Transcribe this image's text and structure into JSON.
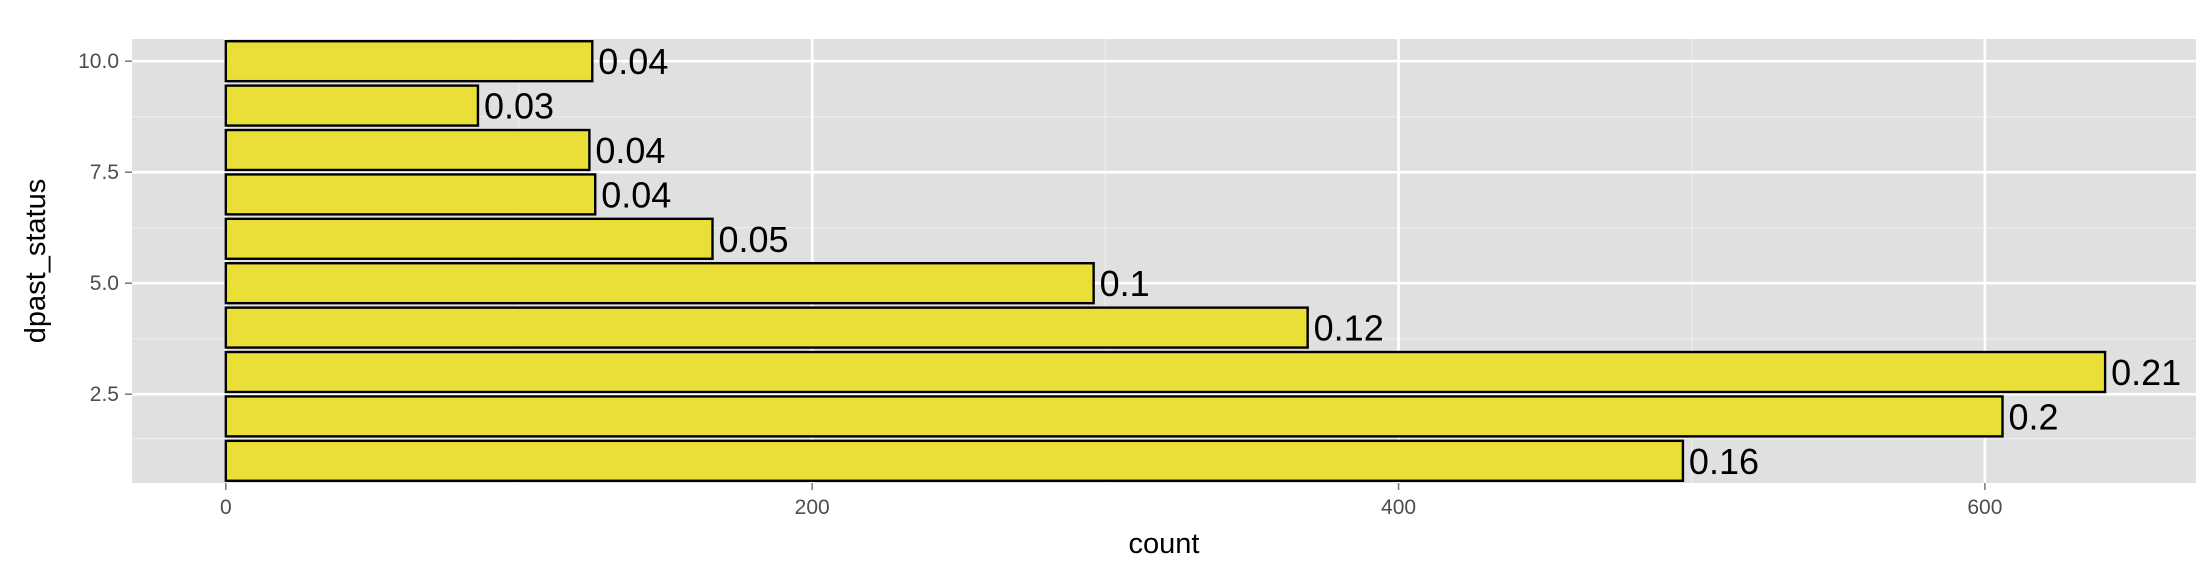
{
  "chart_data": {
    "type": "bar",
    "orientation": "horizontal",
    "xlabel": "count",
    "ylabel": "dpast_status",
    "xlim": [
      -32,
      672
    ],
    "ylim": [
      0.5,
      10.5
    ],
    "x_ticks": [
      0,
      200,
      400,
      600
    ],
    "x_tick_labels": [
      "0",
      "200",
      "400",
      "600"
    ],
    "y_ticks": [
      2.5,
      5.0,
      7.5,
      10.0
    ],
    "y_tick_labels": [
      "2.5",
      "5.0",
      "7.5",
      "10.0"
    ],
    "grid": true,
    "legend": "none",
    "categories": [
      1,
      2,
      3,
      4,
      5,
      6,
      7,
      8,
      9,
      10
    ],
    "values": [
      497,
      606,
      641,
      369,
      296,
      166,
      126,
      124,
      86,
      125
    ],
    "labels": [
      "0.16",
      "0.2",
      "0.21",
      "0.12",
      "0.1",
      "0.05",
      "0.04",
      "0.04",
      "0.03",
      "0.04"
    ],
    "colors": {
      "panel": "#e0e0e0",
      "grid_major": "#ffffff",
      "grid_minor": "#ececec",
      "bar_fill": "#eadf36",
      "bar_stroke": "#000000",
      "tick_text": "#4d4d4d"
    }
  }
}
